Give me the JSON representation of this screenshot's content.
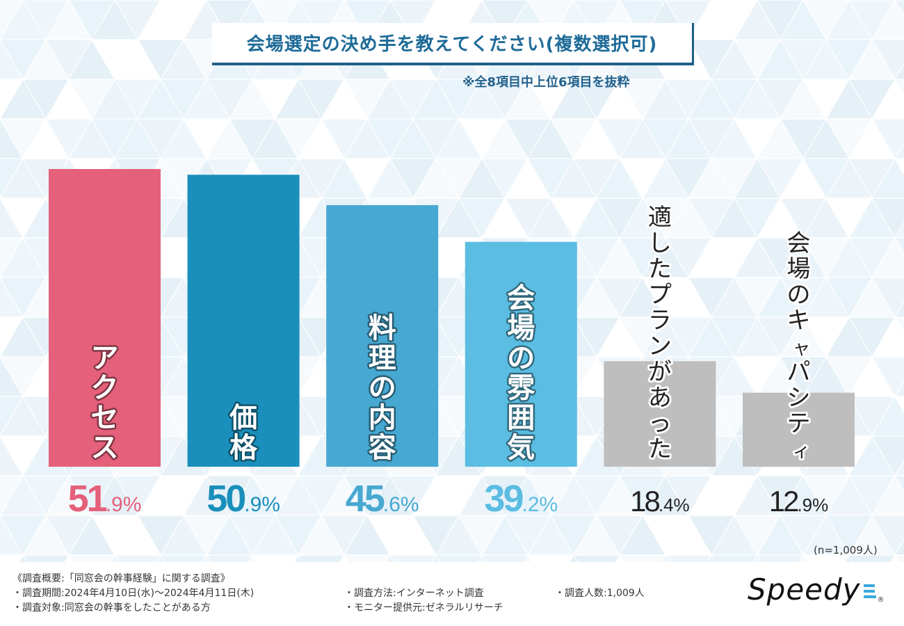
{
  "chart_data": {
    "type": "bar",
    "title": "会場選定の決め手を教えてください(複数選択可)",
    "note": "※全8項目中上位6項目を抜粋",
    "categories": [
      "アクセス",
      "価格",
      "料理の内容",
      "会場の雰囲気",
      "適したプランがあった",
      "会場のキャパシティ"
    ],
    "values": [
      51.9,
      50.9,
      45.6,
      39.2,
      18.4,
      12.9
    ],
    "value_labels": [
      {
        "int": "51",
        "dec": ".9%"
      },
      {
        "int": "50",
        "dec": ".9%"
      },
      {
        "int": "45",
        "dec": ".6%"
      },
      {
        "int": "39",
        "dec": ".2%"
      },
      {
        "int": "18",
        "dec": ".4%"
      },
      {
        "int": "12",
        "dec": ".9%"
      }
    ],
    "colors": [
      "#e5607a",
      "#1a8fbb",
      "#47a8d1",
      "#5bbde2",
      "#bebebe",
      "#bebebe"
    ],
    "label_colors": [
      "#e5607a",
      "#1a8fbb",
      "#47a8d1",
      "#5bbde2",
      "#222222",
      "#222222"
    ],
    "xlabel": "",
    "ylabel": "",
    "ylim": [
      0,
      60
    ],
    "grid": false,
    "legend": "none",
    "sample_size": "(n=1,009人)"
  },
  "survey": {
    "heading": "《調査概要:「同窓会の幹事経験」に関する調査》",
    "period": "・調査期間:2024年4月10日(水)～2024年4月11日(木)",
    "target": "・調査対象:同窓会の幹事をしたことがある方",
    "method": "・調査方法:インターネット調査",
    "provider": "・モニター提供元:ゼネラルリサーチ",
    "count": "・調査人数:1,009人"
  },
  "brand": {
    "name": "Speedy",
    "mark": "®",
    "accent": "#3aa9de"
  }
}
